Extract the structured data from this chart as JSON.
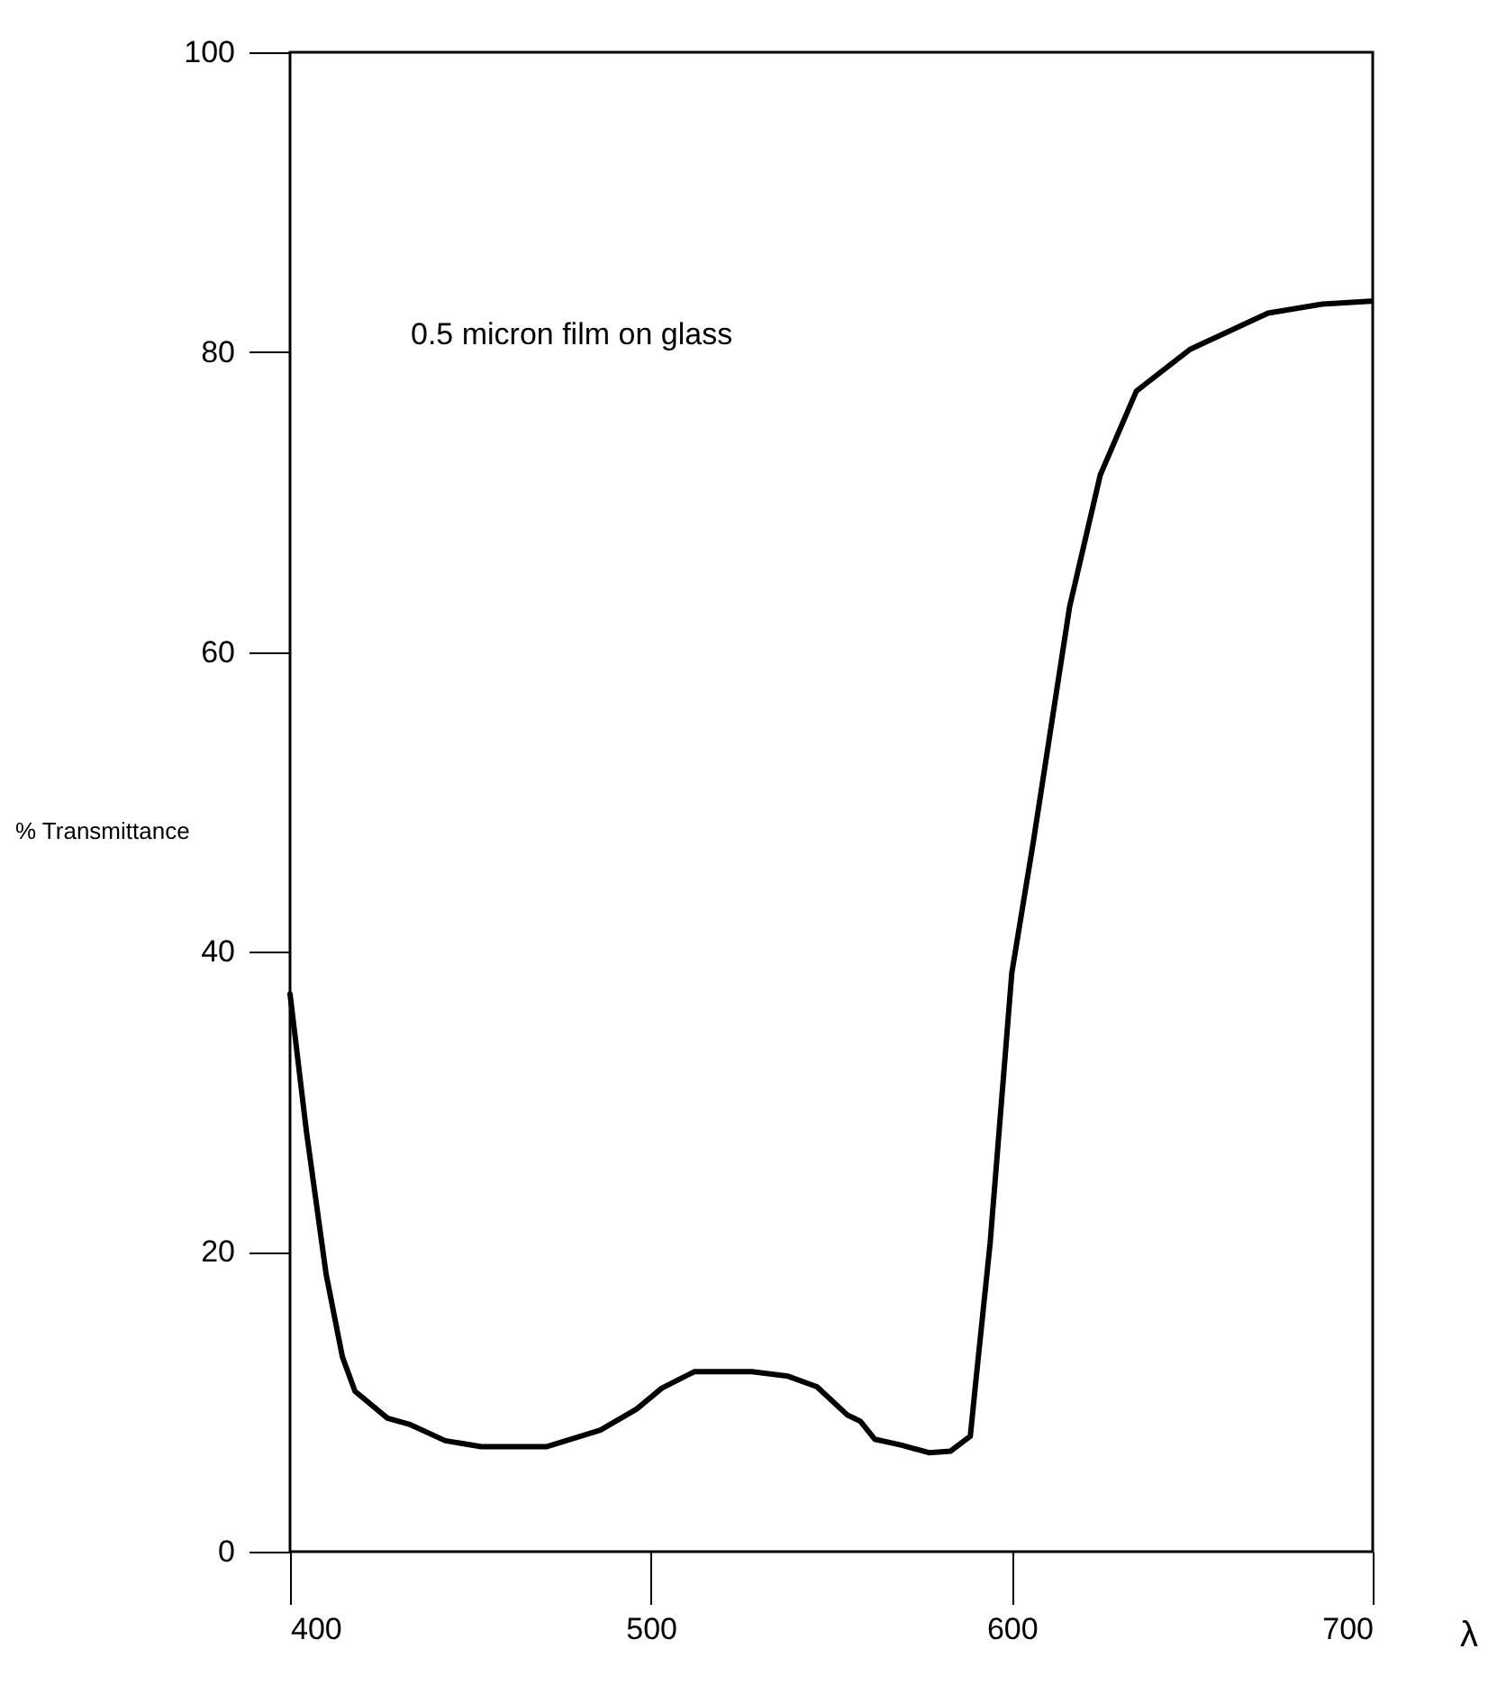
{
  "chart_data": {
    "type": "line",
    "xlabel": "λ",
    "ylabel": "% Transmittance",
    "annotations": [
      "0.5 micron film on glass"
    ],
    "xlim": [
      400,
      700
    ],
    "ylim": [
      0,
      100
    ],
    "xticks": [
      400,
      500,
      600,
      700
    ],
    "yticks": [
      0,
      20,
      40,
      60,
      80,
      100
    ],
    "x": [
      400,
      404.5,
      410,
      414.5,
      418,
      427,
      433,
      443,
      453,
      471,
      486,
      496,
      503,
      512,
      528,
      538,
      546,
      554.5,
      558,
      562,
      569.5,
      577,
      583,
      588.5,
      590,
      594,
      598,
      600,
      606,
      616,
      624.5,
      634.5,
      649.5,
      671,
      686,
      699.5
    ],
    "series": [
      {
        "color": "#000000",
        "values": [
          37.2,
          28.1,
          18.5,
          13.0,
          10.7,
          8.9,
          8.5,
          7.4,
          7.0,
          7.0,
          8.1,
          9.5,
          10.9,
          12.0,
          12.0,
          11.7,
          11.0,
          9.1,
          8.7,
          7.5,
          7.1,
          6.6,
          6.7,
          7.7,
          11.3,
          20.6,
          32.6,
          38.6,
          47.4,
          63.0,
          71.8,
          77.4,
          80.2,
          82.6,
          83.2,
          83.4
        ]
      }
    ]
  }
}
